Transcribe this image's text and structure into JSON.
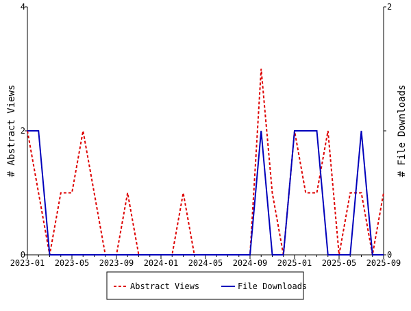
{
  "chart_data": {
    "type": "line",
    "xlabel": "",
    "ylabel_left": "# Abstract Views",
    "ylabel_right": "# File Downloads",
    "x": [
      "2023-01",
      "2023-02",
      "2023-03",
      "2023-04",
      "2023-05",
      "2023-06",
      "2023-07",
      "2023-08",
      "2023-09",
      "2023-10",
      "2023-11",
      "2023-12",
      "2024-01",
      "2024-02",
      "2024-03",
      "2024-04",
      "2024-05",
      "2024-06",
      "2024-07",
      "2024-08",
      "2024-09",
      "2024-10",
      "2024-11",
      "2024-12",
      "2025-01",
      "2025-02",
      "2025-03",
      "2025-04",
      "2025-05",
      "2025-06",
      "2025-07",
      "2025-08",
      "2025-09"
    ],
    "x_tick_labels": [
      "2023-01",
      "2023-05",
      "2023-09",
      "2024-01",
      "2024-05",
      "2024-09",
      "2025-01",
      "2025-05",
      "2025-09"
    ],
    "ylim_left": [
      0,
      4
    ],
    "ylim_right": [
      0,
      2
    ],
    "y_ticks_left": [
      "0",
      "2",
      "4"
    ],
    "y_ticks_right": [
      "0",
      "1",
      "2"
    ],
    "grid": false,
    "legend_position": "bottom",
    "series": [
      {
        "name": "Abstract Views",
        "axis": "left",
        "color": "#dd0000",
        "style": "dashed",
        "values": [
          2,
          1,
          0,
          1,
          1,
          2,
          1,
          0,
          0,
          1,
          0,
          0,
          0,
          0,
          1,
          0,
          0,
          0,
          0,
          0,
          0,
          3,
          1,
          0,
          2,
          1,
          1,
          2,
          0,
          1,
          1,
          0,
          1
        ]
      },
      {
        "name": "File Downloads",
        "axis": "right",
        "color": "#0000bb",
        "style": "solid",
        "values": [
          1,
          1,
          0,
          0,
          0,
          0,
          0,
          0,
          0,
          0,
          0,
          0,
          0,
          0,
          0,
          0,
          0,
          0,
          0,
          0,
          0,
          1,
          0,
          0,
          1,
          1,
          1,
          0,
          0,
          0,
          1,
          0,
          0
        ]
      }
    ]
  }
}
